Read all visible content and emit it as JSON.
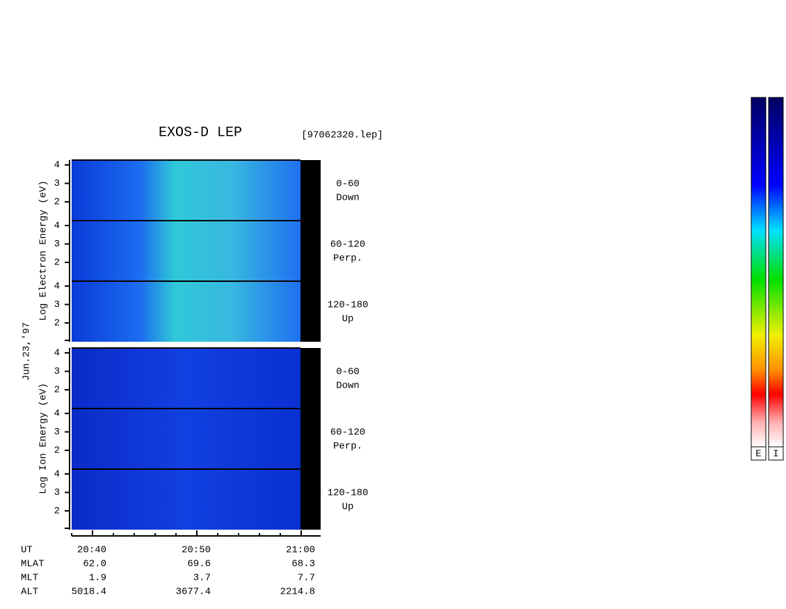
{
  "header": {
    "title": "EXOS-D LEP",
    "file": "[97062320.lep]"
  },
  "date": "Jun.23,'97",
  "electron": {
    "axis_label": "Log  Electron  Energy  (eV)",
    "panels": [
      {
        "range": "0-60",
        "direction": "Down",
        "yticks": [
          4,
          3,
          2
        ]
      },
      {
        "range": "60-120",
        "direction": "Perp.",
        "yticks": [
          4,
          3,
          2
        ]
      },
      {
        "range": "120-180",
        "direction": "Up",
        "yticks": [
          4,
          3,
          2
        ]
      }
    ]
  },
  "ion": {
    "axis_label": "Log  Ion  Energy  (eV)",
    "panels": [
      {
        "range": "0-60",
        "direction": "Down",
        "yticks": [
          4,
          3,
          2
        ]
      },
      {
        "range": "60-120",
        "direction": "Perp.",
        "yticks": [
          4,
          3,
          2
        ]
      },
      {
        "range": "120-180",
        "direction": "Up",
        "yticks": [
          4,
          3,
          2
        ]
      }
    ]
  },
  "ephemeris": [
    {
      "label": "UT",
      "values": [
        "20:40",
        "20:50",
        "21:00"
      ]
    },
    {
      "label": "MLAT",
      "values": [
        "62.0",
        "69.6",
        "68.3"
      ]
    },
    {
      "label": "MLT",
      "values": [
        "1.9",
        "3.7",
        "7.7"
      ]
    },
    {
      "label": "ALT",
      "values": [
        "5018.4",
        "3677.4",
        "2214.8"
      ]
    }
  ],
  "colorbars": [
    "E",
    "I"
  ]
}
